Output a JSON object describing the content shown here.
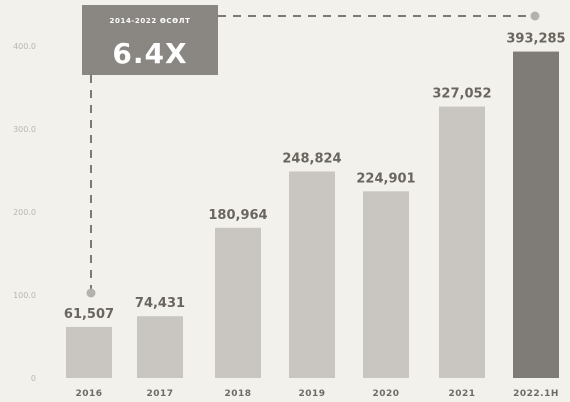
{
  "chart_data": {
    "type": "bar",
    "categories": [
      "2016",
      "2017",
      "2018",
      "2019",
      "2020",
      "2021",
      "2022.1H"
    ],
    "values": [
      61507,
      74431,
      180964,
      248824,
      224901,
      327052,
      393285
    ],
    "value_labels": [
      "61,507",
      "74,431",
      "180,964",
      "248,824",
      "224,901",
      "327,052",
      "393,285"
    ],
    "y_ticks": [
      {
        "value": 0,
        "label": "0"
      },
      {
        "value": 100000,
        "label": "100.0"
      },
      {
        "value": 200000,
        "label": "200.0"
      },
      {
        "value": 300000,
        "label": "300.0"
      },
      {
        "value": 400000,
        "label": "400.0"
      }
    ],
    "ylim": [
      0,
      400000
    ],
    "grid": false,
    "title": "",
    "xlabel": "",
    "ylabel": "",
    "colors": {
      "bar": "#c9c6c1",
      "highlight_bar": "#7f7b76",
      "callout_box": "#8a8681",
      "dashed_line": "#7d7973",
      "marker": "#b5b2ad"
    },
    "annotation": {
      "subtitle": "2014-2022 ӨСӨЛТ",
      "main": "6.4X"
    }
  }
}
